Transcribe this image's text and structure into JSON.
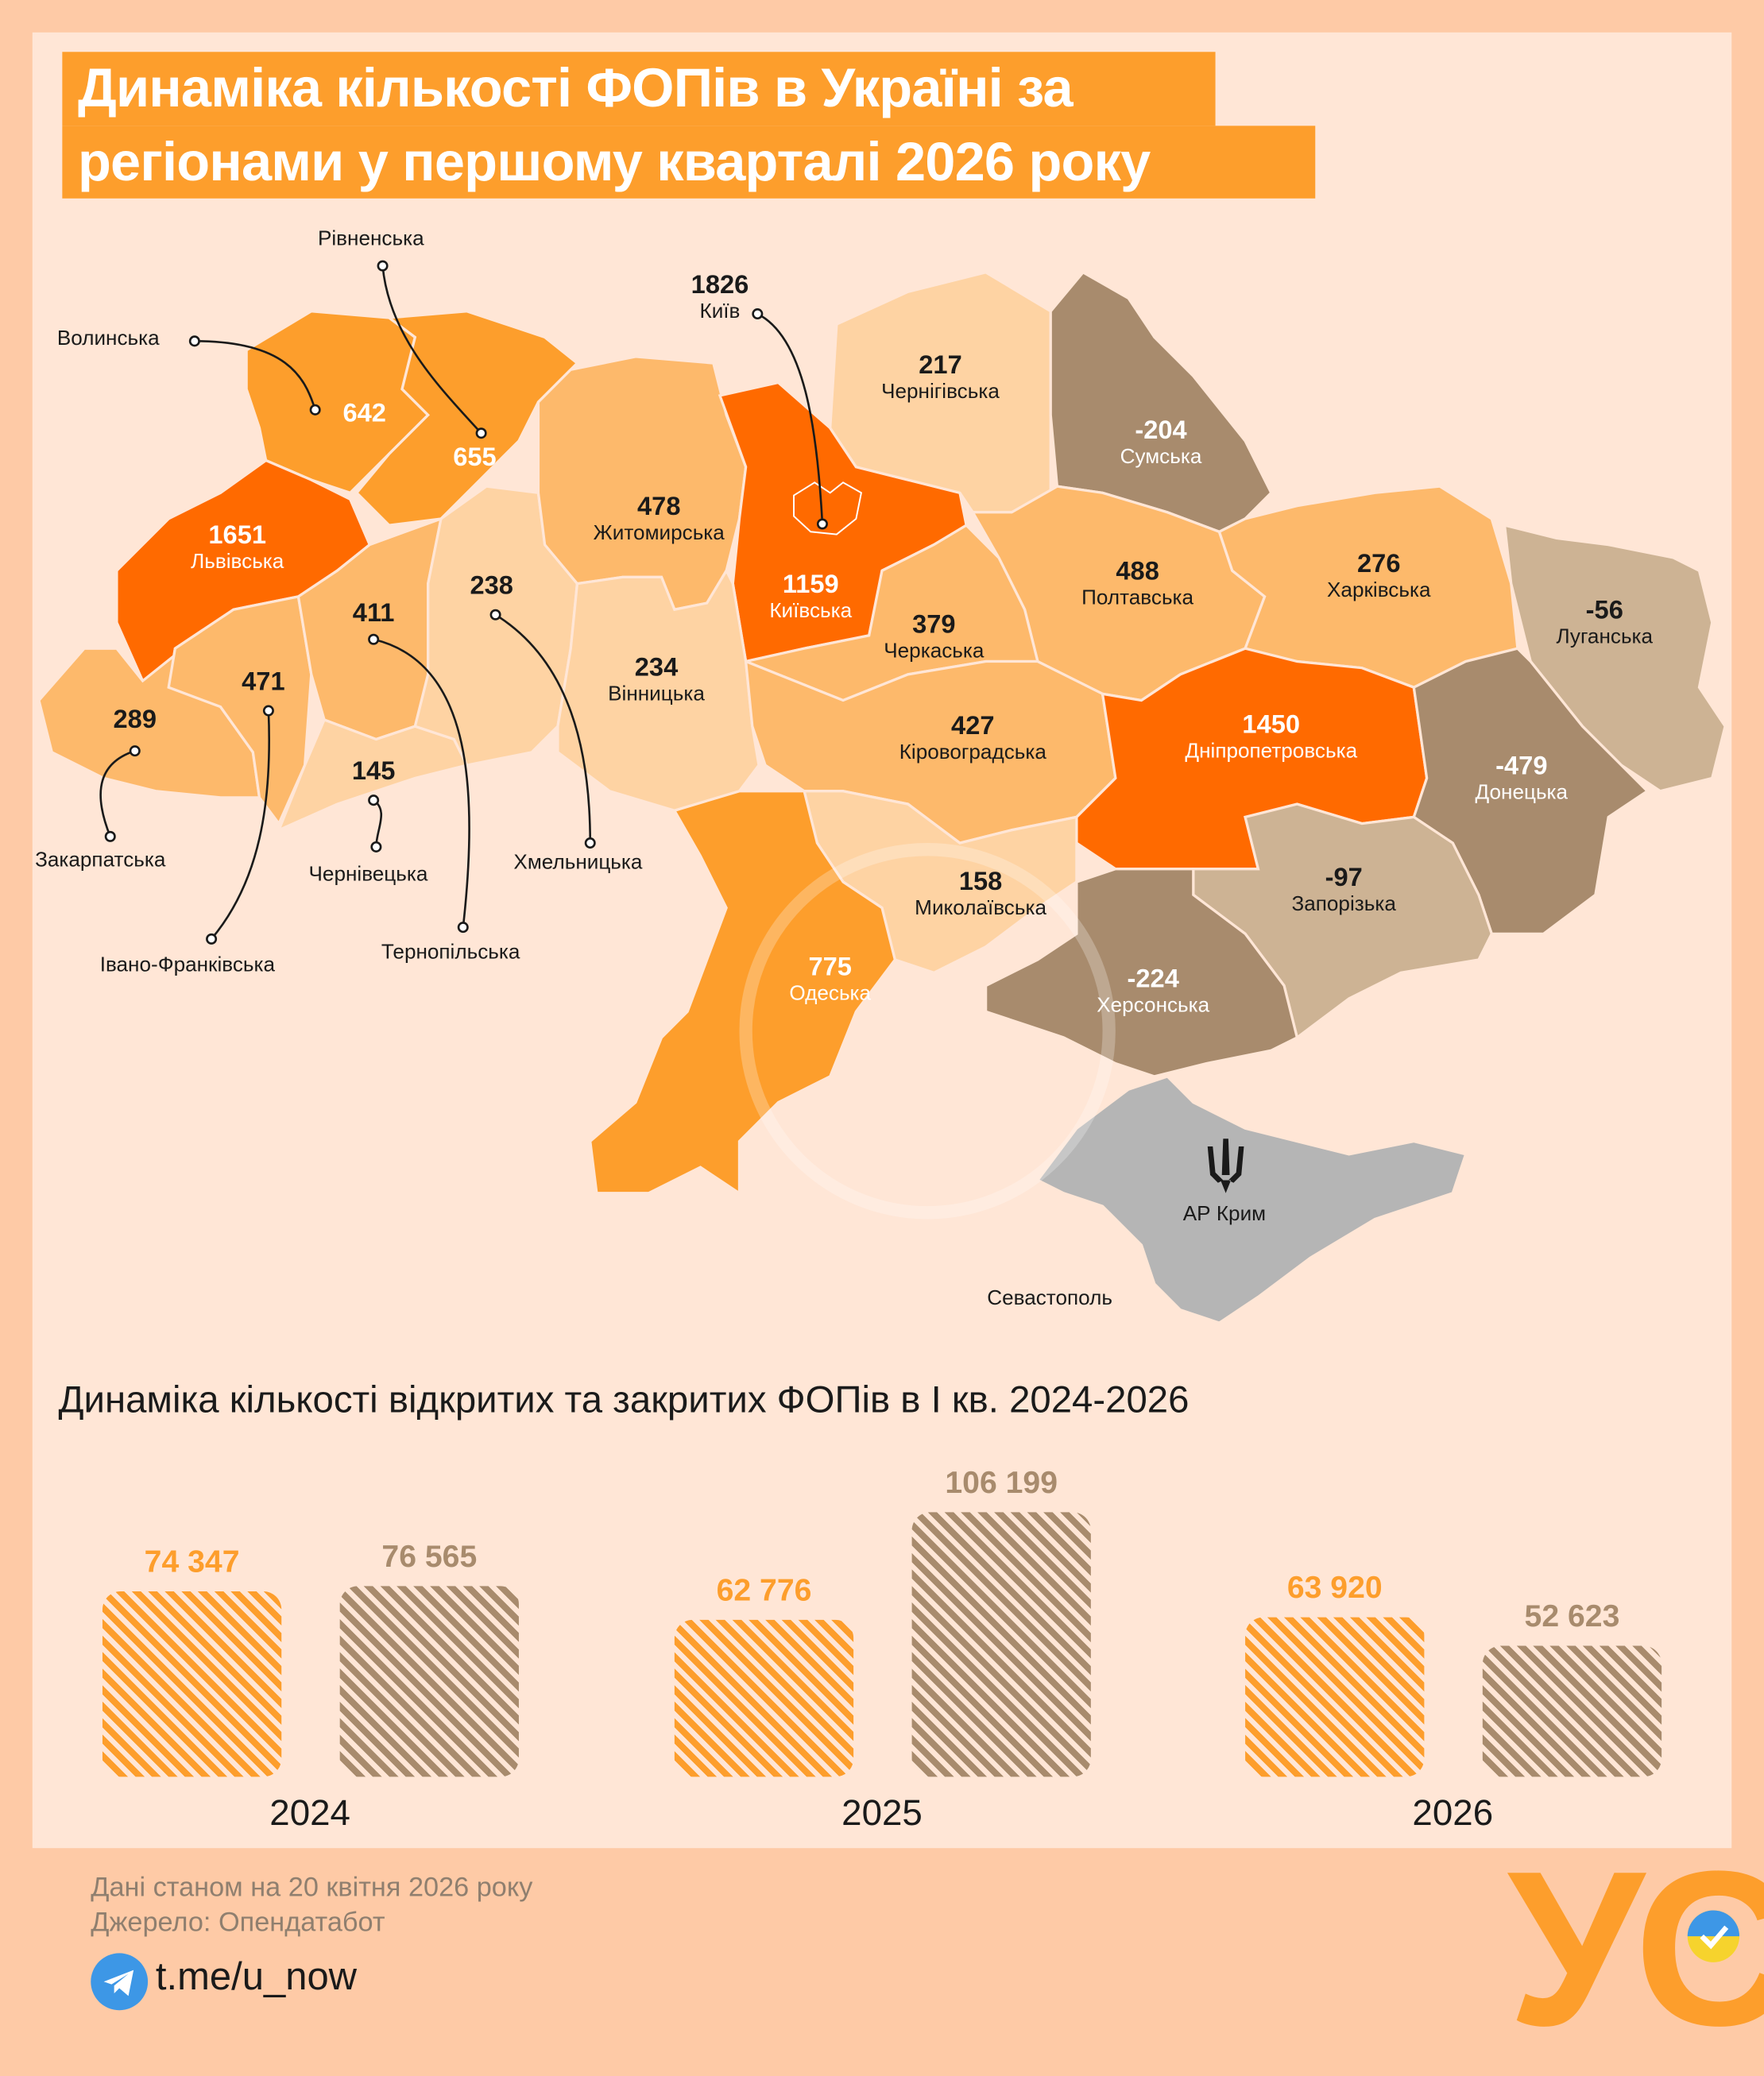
{
  "title": {
    "line1": "Динаміка кількості ФОПів в Україні за",
    "line2": "регіонами у першому кварталі 2026 року"
  },
  "regions": {
    "volynska": {
      "name": "Волинська",
      "value": "642"
    },
    "rivnenska": {
      "name": "Рівненська",
      "value": "655"
    },
    "lvivska": {
      "name": "Львівська",
      "value": "1651"
    },
    "zakarpatska": {
      "name": "Закарпатська",
      "value": "289"
    },
    "ivanofrankivska": {
      "name": "Івано-Франківська",
      "value": "471"
    },
    "ternopilska": {
      "name": "Тернопільська",
      "value": "411"
    },
    "chernivetska": {
      "name": "Чернівецька",
      "value": "145"
    },
    "khmelnytska": {
      "name": "Хмельницька",
      "value": "238"
    },
    "zhytomyrska": {
      "name": "Житомирська",
      "value": "478"
    },
    "kyiv": {
      "name": "Київ",
      "value": "1826"
    },
    "kyivska": {
      "name": "Київська",
      "value": "1159"
    },
    "chernihivska": {
      "name": "Чернігівська",
      "value": "217"
    },
    "sumska": {
      "name": "Сумська",
      "value": "-204"
    },
    "vinnytska": {
      "name": "Вінницька",
      "value": "234"
    },
    "cherkaska": {
      "name": "Черкаська",
      "value": "379"
    },
    "poltavska": {
      "name": "Полтавська",
      "value": "488"
    },
    "kharkivska": {
      "name": "Харківська",
      "value": "276"
    },
    "luhanska": {
      "name": "Луганська",
      "value": "-56"
    },
    "kirovohradska": {
      "name": "Кіровоградська",
      "value": "427"
    },
    "dnipropetrovska": {
      "name": "Дніпропетровська",
      "value": "1450"
    },
    "donetska": {
      "name": "Донецька",
      "value": "-479"
    },
    "zaporizka": {
      "name": "Запорізька",
      "value": "-97"
    },
    "mykolaivska": {
      "name": "Миколаївська",
      "value": "158"
    },
    "odeska": {
      "name": "Одеська",
      "value": "775"
    },
    "khersonska": {
      "name": "Херсонська",
      "value": "-224"
    },
    "crimea": {
      "name": "АР Крим"
    },
    "sevastopol": {
      "name": "Севастополь"
    }
  },
  "colors": {
    "dark": "#ff6a00",
    "mid": "#fd9e2c",
    "light": "#fdb96b",
    "pale": "#fed3a3",
    "brown": "#a88b6d",
    "tan": "#cdb394",
    "grey": "#b5b5b5"
  },
  "chart_data": {
    "type": "bar",
    "title": "Динаміка кількості відкритих та закритих ФОПів в І кв. 2024-2026",
    "categories": [
      "2024",
      "2025",
      "2026"
    ],
    "series": [
      {
        "key": "opened",
        "color": "#fd9e2c",
        "values": [
          74347,
          62776,
          63920
        ],
        "labels": [
          "74 347",
          "62 776",
          "63 920"
        ]
      },
      {
        "key": "closed",
        "color": "#a88b6d",
        "values": [
          76565,
          106199,
          52623
        ],
        "labels": [
          "76 565",
          "106 199",
          "52 623"
        ]
      }
    ],
    "ylim": [
      0,
      106199
    ]
  },
  "footer": {
    "date": "Дані станом на 20 квітня 2026 року",
    "source": "Джерело: Опендатабот",
    "link": "t.me/u_now",
    "logo": "УС"
  }
}
